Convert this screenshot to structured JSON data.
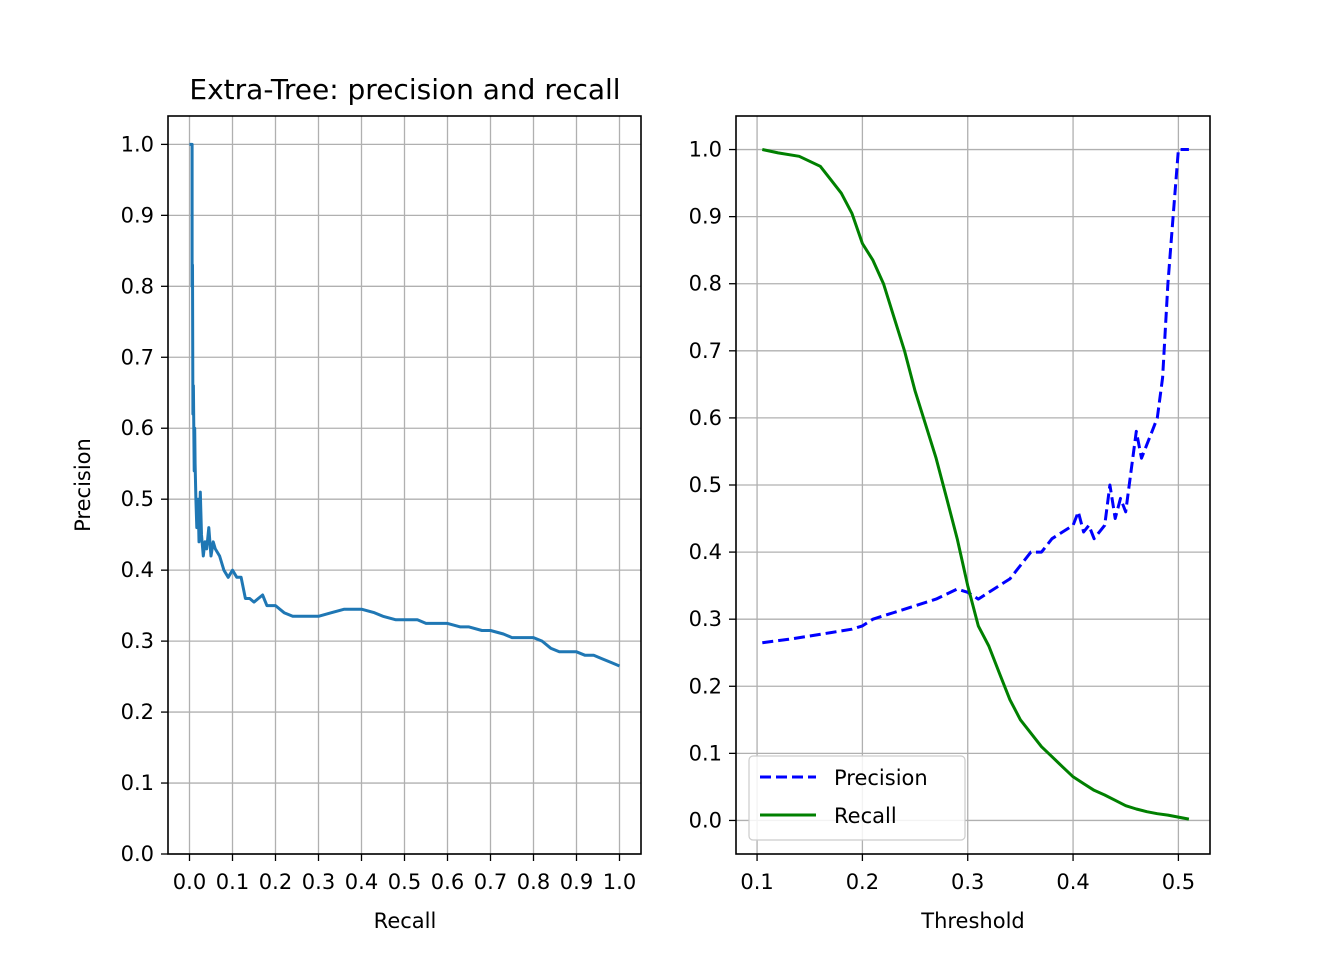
{
  "chart_data": [
    {
      "type": "line",
      "title": "Extra-Tree: precision and recall",
      "xlabel": "Recall",
      "ylabel": "Precision",
      "xlim": [
        -0.05,
        1.05
      ],
      "ylim": [
        0.0,
        1.04
      ],
      "xticks": [
        0.0,
        0.1,
        0.2,
        0.3,
        0.4,
        0.5,
        0.6,
        0.7,
        0.8,
        0.9,
        1.0
      ],
      "xtick_labels": [
        "0.0",
        "0.1",
        "0.2",
        "0.3",
        "0.4",
        "0.5",
        "0.6",
        "0.7",
        "0.8",
        "0.9",
        "1.0"
      ],
      "yticks": [
        0.0,
        0.1,
        0.2,
        0.3,
        0.4,
        0.5,
        0.6,
        0.7,
        0.8,
        0.9,
        1.0
      ],
      "ytick_labels": [
        "0.0",
        "0.1",
        "0.2",
        "0.3",
        "0.4",
        "0.5",
        "0.6",
        "0.7",
        "0.8",
        "0.9",
        "1.0"
      ],
      "grid": true,
      "series": [
        {
          "color": "#1f77b4",
          "style": "solid",
          "x": [
            0.0,
            0.006,
            0.006,
            0.007,
            0.008,
            0.009,
            0.011,
            0.012,
            0.013,
            0.015,
            0.017,
            0.02,
            0.022,
            0.025,
            0.028,
            0.032,
            0.036,
            0.04,
            0.045,
            0.05,
            0.055,
            0.06,
            0.07,
            0.08,
            0.09,
            0.1,
            0.11,
            0.12,
            0.13,
            0.14,
            0.15,
            0.16,
            0.17,
            0.18,
            0.2,
            0.22,
            0.24,
            0.26,
            0.28,
            0.3,
            0.33,
            0.36,
            0.4,
            0.43,
            0.45,
            0.48,
            0.5,
            0.53,
            0.55,
            0.58,
            0.6,
            0.63,
            0.65,
            0.68,
            0.7,
            0.73,
            0.75,
            0.78,
            0.8,
            0.82,
            0.84,
            0.86,
            0.88,
            0.9,
            0.92,
            0.94,
            0.96,
            0.98,
            1.0
          ],
          "y": [
            1.0,
            1.0,
            0.8,
            0.83,
            0.62,
            0.66,
            0.54,
            0.6,
            0.55,
            0.5,
            0.46,
            0.5,
            0.44,
            0.51,
            0.45,
            0.42,
            0.44,
            0.43,
            0.46,
            0.42,
            0.44,
            0.43,
            0.42,
            0.4,
            0.39,
            0.4,
            0.39,
            0.39,
            0.36,
            0.36,
            0.355,
            0.36,
            0.365,
            0.35,
            0.35,
            0.34,
            0.335,
            0.335,
            0.335,
            0.335,
            0.34,
            0.345,
            0.345,
            0.34,
            0.335,
            0.33,
            0.33,
            0.33,
            0.325,
            0.325,
            0.325,
            0.32,
            0.32,
            0.315,
            0.315,
            0.31,
            0.305,
            0.305,
            0.305,
            0.3,
            0.29,
            0.285,
            0.285,
            0.285,
            0.28,
            0.28,
            0.275,
            0.27,
            0.265
          ]
        }
      ]
    },
    {
      "type": "line",
      "title": "",
      "xlabel": "Threshold",
      "ylabel": "",
      "xlim": [
        0.08,
        0.53
      ],
      "ylim": [
        -0.05,
        1.05
      ],
      "xticks": [
        0.1,
        0.2,
        0.3,
        0.4,
        0.5
      ],
      "xtick_labels": [
        "0.1",
        "0.2",
        "0.3",
        "0.4",
        "0.5"
      ],
      "yticks": [
        0.0,
        0.1,
        0.2,
        0.3,
        0.4,
        0.5,
        0.6,
        0.7,
        0.8,
        0.9,
        1.0
      ],
      "ytick_labels": [
        "0.0",
        "0.1",
        "0.2",
        "0.3",
        "0.4",
        "0.5",
        "0.6",
        "0.7",
        "0.8",
        "0.9",
        "1.0"
      ],
      "grid": true,
      "legend": "lower-left",
      "series": [
        {
          "name": "Precision",
          "color": "#0000ff",
          "style": "dashed",
          "x": [
            0.105,
            0.13,
            0.15,
            0.17,
            0.19,
            0.2,
            0.21,
            0.22,
            0.23,
            0.25,
            0.27,
            0.29,
            0.3,
            0.31,
            0.32,
            0.33,
            0.34,
            0.35,
            0.36,
            0.37,
            0.38,
            0.39,
            0.4,
            0.405,
            0.41,
            0.415,
            0.42,
            0.43,
            0.435,
            0.44,
            0.445,
            0.45,
            0.455,
            0.46,
            0.465,
            0.47,
            0.475,
            0.48,
            0.485,
            0.49,
            0.495,
            0.5,
            0.51
          ],
          "y": [
            0.265,
            0.27,
            0.275,
            0.28,
            0.285,
            0.29,
            0.3,
            0.305,
            0.31,
            0.32,
            0.33,
            0.345,
            0.34,
            0.33,
            0.34,
            0.35,
            0.36,
            0.38,
            0.4,
            0.4,
            0.42,
            0.43,
            0.44,
            0.46,
            0.43,
            0.44,
            0.42,
            0.44,
            0.5,
            0.45,
            0.48,
            0.46,
            0.52,
            0.58,
            0.54,
            0.56,
            0.58,
            0.6,
            0.66,
            0.8,
            0.9,
            1.0,
            1.0
          ]
        },
        {
          "name": "Recall",
          "color": "#008000",
          "style": "solid",
          "x": [
            0.105,
            0.12,
            0.14,
            0.16,
            0.17,
            0.18,
            0.19,
            0.2,
            0.21,
            0.22,
            0.23,
            0.24,
            0.25,
            0.26,
            0.27,
            0.28,
            0.29,
            0.3,
            0.31,
            0.32,
            0.33,
            0.34,
            0.35,
            0.36,
            0.37,
            0.38,
            0.39,
            0.4,
            0.41,
            0.42,
            0.43,
            0.44,
            0.45,
            0.46,
            0.47,
            0.48,
            0.49,
            0.5,
            0.51
          ],
          "y": [
            1.0,
            0.995,
            0.99,
            0.975,
            0.955,
            0.935,
            0.905,
            0.86,
            0.835,
            0.8,
            0.75,
            0.7,
            0.64,
            0.59,
            0.54,
            0.48,
            0.42,
            0.35,
            0.29,
            0.26,
            0.22,
            0.18,
            0.15,
            0.13,
            0.11,
            0.095,
            0.08,
            0.065,
            0.055,
            0.045,
            0.038,
            0.03,
            0.022,
            0.017,
            0.013,
            0.01,
            0.008,
            0.005,
            0.002
          ]
        }
      ]
    }
  ]
}
